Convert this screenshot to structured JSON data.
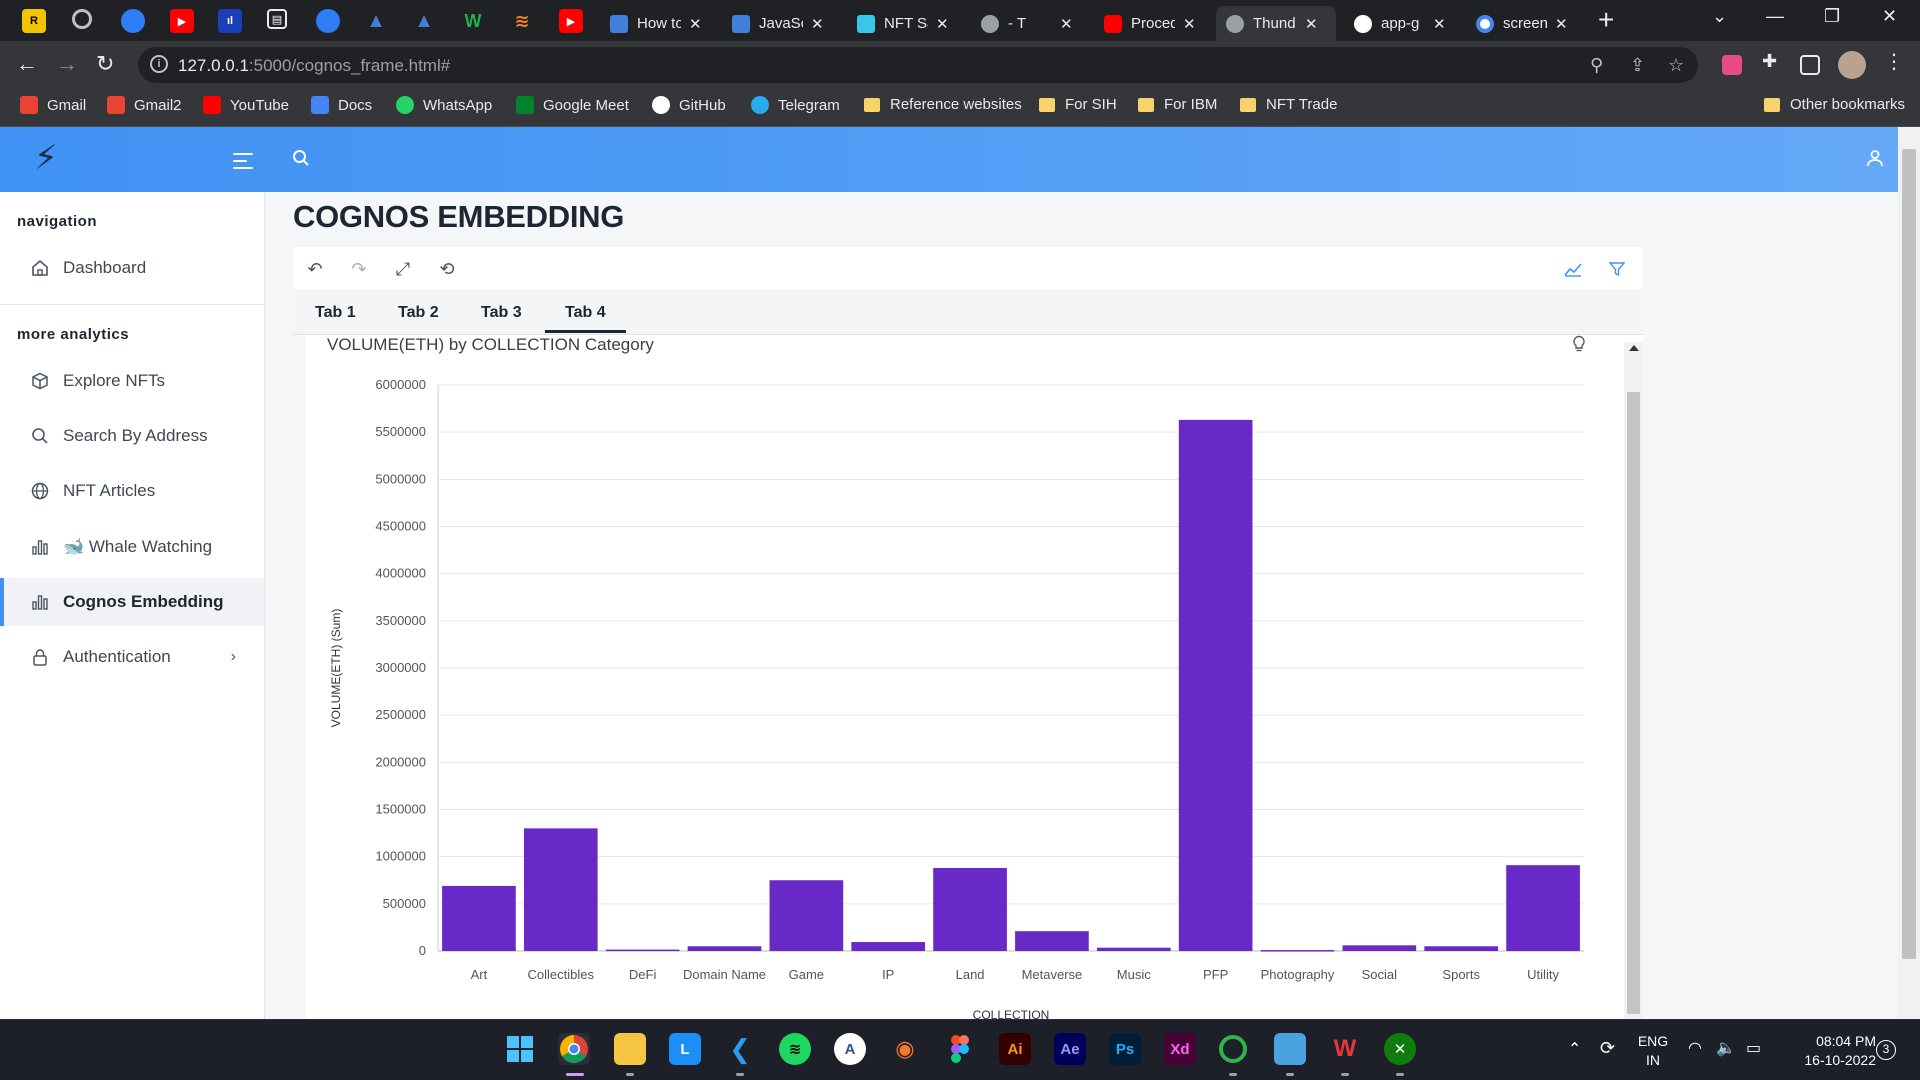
{
  "browser": {
    "tabs": [
      {
        "title": "How to",
        "color": "#3f7fd9"
      },
      {
        "title": "JavaSc",
        "color": "#3f7fd9"
      },
      {
        "title": "NFT Sa",
        "color": "#39c6ea"
      },
      {
        "title": "- T",
        "color": "#9aa0a6"
      },
      {
        "title": "Proced",
        "color": "#ff0000"
      },
      {
        "title": "Thund",
        "color": "#9aa0a6"
      },
      {
        "title": "app-g",
        "color": "#ffffff"
      },
      {
        "title": "screen",
        "color": "#4285f4"
      }
    ],
    "url_host": "127.0.0.1",
    "url_path": ":5000/cognos_frame.html#",
    "bookmarks": [
      {
        "label": "Gmail",
        "color": "#ea4335"
      },
      {
        "label": "Gmail2",
        "color": "#ea4335"
      },
      {
        "label": "YouTube",
        "color": "#ff0000"
      },
      {
        "label": "Docs",
        "color": "#4285f4"
      },
      {
        "label": "WhatsApp",
        "color": "#25d366"
      },
      {
        "label": "Google Meet",
        "color": "#00832d"
      },
      {
        "label": "GitHub",
        "color": "#ffffff"
      },
      {
        "label": "Telegram",
        "color": "#2aabee"
      },
      {
        "label": "Reference websites",
        "color": "#f6d36b"
      },
      {
        "label": "For SIH",
        "color": "#f6d36b"
      },
      {
        "label": "For IBM",
        "color": "#f6d36b"
      },
      {
        "label": "NFT Trade",
        "color": "#f6d36b"
      },
      {
        "label": "Other bookmarks",
        "color": "#f6d36b"
      }
    ]
  },
  "sidebar": {
    "navigation_caption": "navigation",
    "dashboard": "Dashboard",
    "analytics_caption": "more analytics",
    "items": [
      {
        "label": "Explore NFTs",
        "icon": "box-icon"
      },
      {
        "label": "Search By Address",
        "icon": "search-icon"
      },
      {
        "label": "NFT Articles",
        "icon": "globe-icon"
      },
      {
        "label": "🐋 Whale Watching",
        "icon": "bar-chart-icon"
      },
      {
        "label": "Cognos Embedding",
        "icon": "bar-chart-icon"
      },
      {
        "label": "Authentication",
        "icon": "lock-icon"
      }
    ]
  },
  "main": {
    "title": "COGNOS EMBEDDING",
    "tabs": [
      "Tab 1",
      "Tab 2",
      "Tab 3",
      "Tab 4"
    ],
    "active_tab": "Tab 4",
    "accent": "#3f91f4"
  },
  "chart_data": {
    "type": "bar",
    "title": "VOLUME(ETH) by COLLECTION Category",
    "xlabel": "COLLECTION",
    "ylabel": "VOLUME(ETH) (Sum)",
    "categories": [
      "Art",
      "Collectibles",
      "DeFi",
      "Domain Name",
      "Game",
      "IP",
      "Land",
      "Metaverse",
      "Music",
      "PFP",
      "Photography",
      "Social",
      "Sports",
      "Utility"
    ],
    "values": [
      690000,
      1300000,
      15000,
      50000,
      750000,
      95000,
      880000,
      210000,
      35000,
      5630000,
      10000,
      60000,
      50000,
      910000
    ],
    "ylim": [
      0,
      6000000
    ],
    "yticks": [
      "0",
      "500000",
      "1000000",
      "1500000",
      "2000000",
      "2500000",
      "3000000",
      "3500000",
      "4000000",
      "4500000",
      "5000000",
      "5500000",
      "6000000"
    ],
    "bar_color": "#6829c7",
    "grid": true
  },
  "taskbar": {
    "lang": "ENG",
    "region": "IN",
    "time": "08:04 PM",
    "date": "16-10-2022",
    "notifications": "3"
  }
}
